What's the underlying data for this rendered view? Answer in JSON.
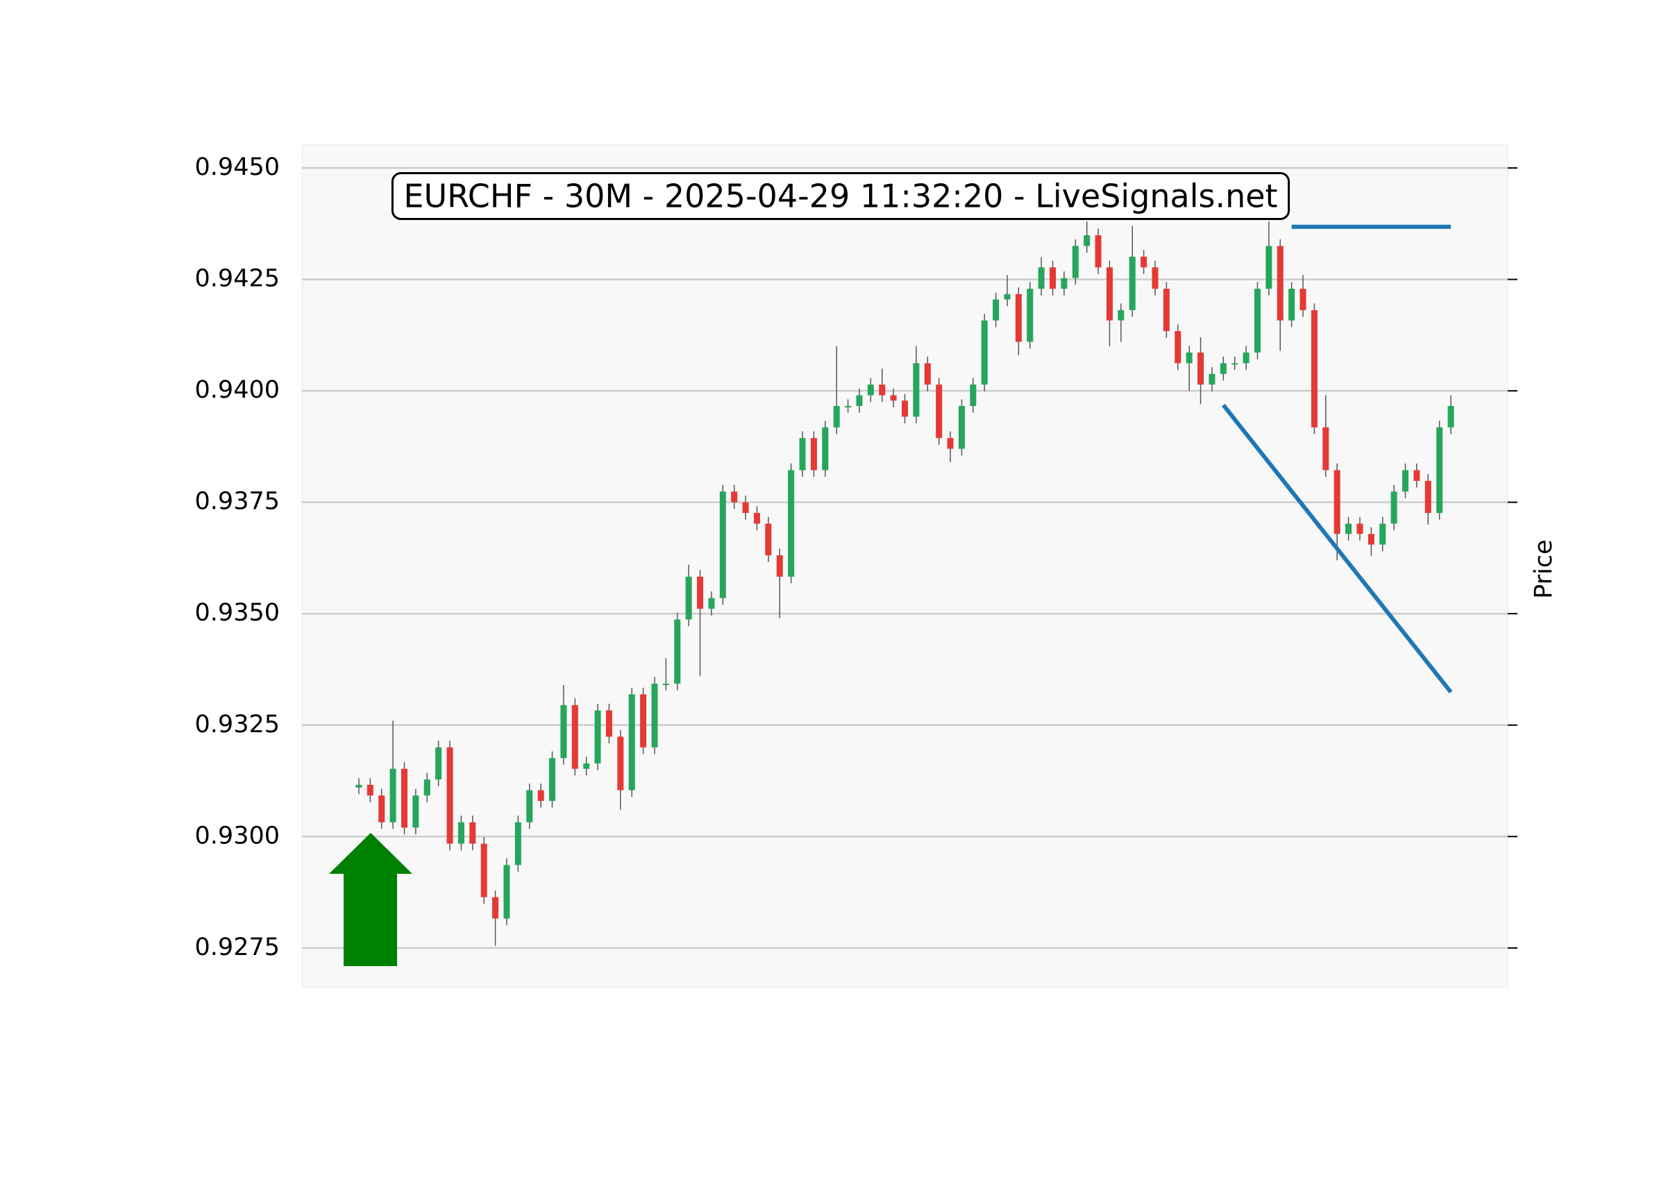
{
  "chart_data": {
    "type": "candlestick",
    "title": "EURCHF - 30M - 2025-04-29 11:32:20 - LiveSignals.net",
    "y_label": "Price",
    "ylim": [
      0.92661,
      0.94553
    ],
    "yticks": [
      {
        "value": 0.945,
        "label": "0.9450"
      },
      0.9425,
      {
        "value": 0.94,
        "label": "0.9400"
      },
      0.9375,
      {
        "value": 0.935,
        "label": "0.9350"
      },
      0.9325,
      {
        "value": 0.93,
        "label": "0.9300"
      },
      0.9275
    ],
    "xlim": [
      -5,
      101
    ],
    "grid": true,
    "up_color": "#26a65b",
    "down_color": "#e53935",
    "open": [
      0.9311,
      0.93116,
      0.93092,
      0.93032,
      0.93152,
      0.9302,
      0.93092,
      0.93128,
      0.932,
      0.92984,
      0.93032,
      0.92984,
      0.92864,
      0.92816,
      0.92936,
      0.93032,
      0.93104,
      0.9308,
      0.93176,
      0.93295,
      0.93152,
      0.93164,
      0.93283,
      0.93224,
      0.93104,
      0.93319,
      0.932,
      0.93343,
      0.93343,
      0.93487,
      0.93583,
      0.93511,
      0.93535,
      0.93774,
      0.9375,
      0.93726,
      0.93702,
      0.93631,
      0.93583,
      0.93822,
      0.93894,
      0.93822,
      0.93918,
      0.93966,
      0.93966,
      0.9399,
      0.94014,
      0.9399,
      0.93978,
      0.93942,
      0.94062,
      0.94014,
      0.93894,
      0.9387,
      0.93966,
      0.94014,
      0.94158,
      0.94205,
      0.94217,
      0.9411,
      0.94229,
      0.94277,
      0.94229,
      0.94253,
      0.94325,
      0.94349,
      0.94277,
      0.94158,
      0.94181,
      0.94301,
      0.94277,
      0.94229,
      0.94134,
      0.94062,
      0.94086,
      0.94014,
      0.94038,
      0.94062,
      0.94062,
      0.94086,
      0.94229,
      0.94325,
      0.94158,
      0.94229,
      0.94181,
      0.93918,
      0.93822,
      0.93679,
      0.93702,
      0.93679,
      0.93655,
      0.93702,
      0.93774,
      0.93822,
      0.93798,
      0.93726,
      0.93918
    ],
    "high": [
      0.93131,
      0.93131,
      0.93107,
      0.9326,
      0.93167,
      0.93107,
      0.93143,
      0.93215,
      0.93215,
      0.93047,
      0.93047,
      0.92999,
      0.92879,
      0.92951,
      0.93047,
      0.93119,
      0.93119,
      0.93191,
      0.9334,
      0.9331,
      0.93179,
      0.93298,
      0.93298,
      0.93239,
      0.93334,
      0.93334,
      0.93358,
      0.934,
      0.93502,
      0.9361,
      0.93598,
      0.9355,
      0.93789,
      0.93789,
      0.93765,
      0.93741,
      0.93717,
      0.93646,
      0.93837,
      0.93909,
      0.93909,
      0.93933,
      0.941,
      0.93981,
      0.94005,
      0.94029,
      0.9405,
      0.94005,
      0.93993,
      0.941,
      0.94077,
      0.94029,
      0.93909,
      0.93981,
      0.94029,
      0.94173,
      0.9422,
      0.9426,
      0.94232,
      0.94244,
      0.943,
      0.94292,
      0.94268,
      0.9434,
      0.9438,
      0.94364,
      0.94292,
      0.94196,
      0.9437,
      0.94316,
      0.94292,
      0.94244,
      0.94149,
      0.94101,
      0.9412,
      0.94053,
      0.94077,
      0.94077,
      0.94101,
      0.94244,
      0.9438,
      0.9434,
      0.94244,
      0.9426,
      0.94196,
      0.9399,
      0.93837,
      0.93717,
      0.93717,
      0.93694,
      0.93717,
      0.93789,
      0.93837,
      0.93837,
      0.93813,
      0.93933,
      0.9399
    ],
    "low": [
      0.93095,
      0.93077,
      0.93017,
      0.93017,
      0.93005,
      0.93005,
      0.93077,
      0.93113,
      0.92969,
      0.92969,
      0.92969,
      0.92849,
      0.92755,
      0.92801,
      0.92921,
      0.93017,
      0.93065,
      0.93065,
      0.93161,
      0.93137,
      0.93137,
      0.93149,
      0.93209,
      0.9306,
      0.93089,
      0.93185,
      0.93185,
      0.93328,
      0.93328,
      0.93472,
      0.9336,
      0.93496,
      0.9352,
      0.93735,
      0.93711,
      0.93687,
      0.93616,
      0.9349,
      0.93568,
      0.93807,
      0.93807,
      0.93807,
      0.93903,
      0.93951,
      0.93951,
      0.93975,
      0.93975,
      0.93963,
      0.93927,
      0.93927,
      0.93999,
      0.93879,
      0.9384,
      0.93855,
      0.93951,
      0.93999,
      0.94143,
      0.9419,
      0.9408,
      0.94095,
      0.94214,
      0.94214,
      0.94214,
      0.94238,
      0.9431,
      0.94262,
      0.941,
      0.9411,
      0.94166,
      0.94262,
      0.94214,
      0.94119,
      0.94047,
      0.94,
      0.9397,
      0.93999,
      0.94023,
      0.94047,
      0.94047,
      0.94071,
      0.94214,
      0.9409,
      0.94143,
      0.94166,
      0.93903,
      0.93807,
      0.9362,
      0.93664,
      0.93664,
      0.9363,
      0.9364,
      0.93687,
      0.93759,
      0.93783,
      0.937,
      0.93711,
      0.93903
    ],
    "close": [
      0.93116,
      0.93092,
      0.93032,
      0.93152,
      0.9302,
      0.93092,
      0.93128,
      0.932,
      0.92984,
      0.93032,
      0.92984,
      0.92864,
      0.92816,
      0.92936,
      0.93032,
      0.93104,
      0.9308,
      0.93176,
      0.93295,
      0.93152,
      0.93164,
      0.93283,
      0.93224,
      0.93104,
      0.93319,
      0.932,
      0.93343,
      0.93343,
      0.93487,
      0.93583,
      0.93511,
      0.93535,
      0.93774,
      0.9375,
      0.93726,
      0.93702,
      0.93631,
      0.93583,
      0.93822,
      0.93894,
      0.93822,
      0.93918,
      0.93966,
      0.93966,
      0.9399,
      0.94014,
      0.9399,
      0.93978,
      0.93942,
      0.94062,
      0.94014,
      0.93894,
      0.9387,
      0.93966,
      0.94014,
      0.94158,
      0.94205,
      0.94217,
      0.9411,
      0.94229,
      0.94277,
      0.94229,
      0.94253,
      0.94325,
      0.94349,
      0.94277,
      0.94158,
      0.94181,
      0.94301,
      0.94277,
      0.94229,
      0.94134,
      0.94062,
      0.94086,
      0.94014,
      0.94038,
      0.94062,
      0.94062,
      0.94086,
      0.94229,
      0.94325,
      0.94158,
      0.94229,
      0.94181,
      0.93918,
      0.93822,
      0.93679,
      0.93702,
      0.93679,
      0.93655,
      0.93702,
      0.93774,
      0.93822,
      0.93798,
      0.93726,
      0.93918,
      0.93966
    ],
    "lines": [
      {
        "x": [
          82,
          96
        ],
        "values": [
          0.94368,
          0.94368
        ],
        "color": "#1f77b4"
      },
      {
        "x": [
          76,
          96
        ],
        "values": [
          0.93968,
          0.93324
        ],
        "color": "#1f77b4"
      }
    ]
  }
}
